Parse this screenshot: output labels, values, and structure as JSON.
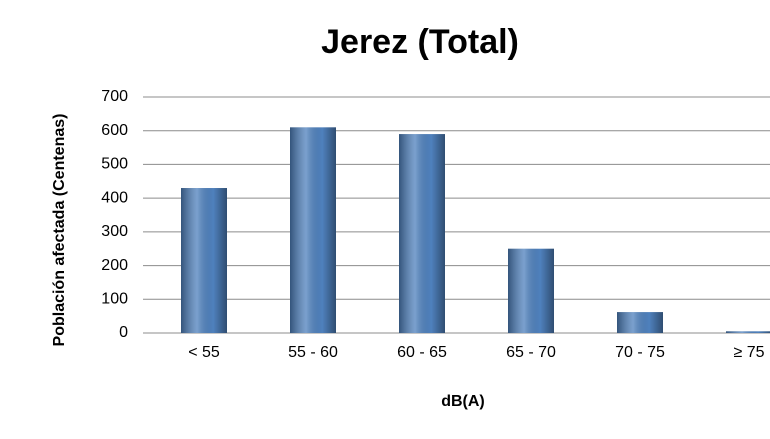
{
  "chart_data": {
    "type": "bar",
    "title": "Jerez (Total)",
    "x_label": "dB(A)",
    "y_label": "Población afectada (Centenas)",
    "categories": [
      "< 55",
      "55 - 60",
      "60 - 65",
      "65 - 70",
      "70 - 75",
      "≥ 75"
    ],
    "values": [
      430,
      610,
      590,
      250,
      62,
      5
    ],
    "color": "#4f81bd",
    "ylim": [
      0,
      700
    ],
    "yticks": [
      0,
      100,
      200,
      300,
      400,
      500,
      600,
      700
    ],
    "grid": true
  }
}
